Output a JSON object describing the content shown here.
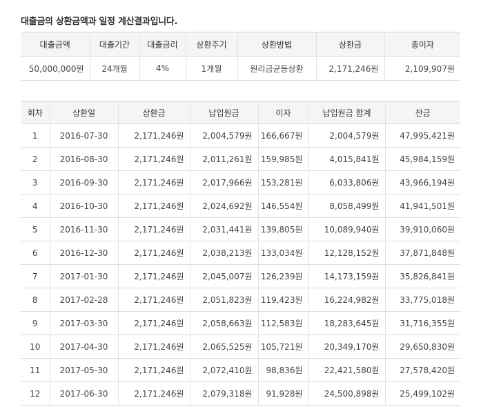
{
  "title": "대출금의 상환금액과 일정 계산결과입니다.",
  "summary": {
    "headers": [
      "대출금액",
      "대출기간",
      "대출금리",
      "상환주기",
      "상환방법",
      "상환금",
      "총이자"
    ],
    "values": [
      "50,000,000원",
      "24개월",
      "4%",
      "1개월",
      "원리금균등상환",
      "2,171,246원",
      "2,109,907원"
    ]
  },
  "schedule": {
    "headers": [
      "회차",
      "상환일",
      "상환금",
      "납입원금",
      "이자",
      "납입원금 합계",
      "잔금"
    ],
    "rows": [
      [
        "1",
        "2016-07-30",
        "2,171,246원",
        "2,004,579원",
        "166,667원",
        "2,004,579원",
        "47,995,421원"
      ],
      [
        "2",
        "2016-08-30",
        "2,171,246원",
        "2,011,261원",
        "159,985원",
        "4,015,841원",
        "45,984,159원"
      ],
      [
        "3",
        "2016-09-30",
        "2,171,246원",
        "2,017,966원",
        "153,281원",
        "6,033,806원",
        "43,966,194원"
      ],
      [
        "4",
        "2016-10-30",
        "2,171,246원",
        "2,024,692원",
        "146,554원",
        "8,058,499원",
        "41,941,501원"
      ],
      [
        "5",
        "2016-11-30",
        "2,171,246원",
        "2,031,441원",
        "139,805원",
        "10,089,940원",
        "39,910,060원"
      ],
      [
        "6",
        "2016-12-30",
        "2,171,246원",
        "2,038,213원",
        "133,034원",
        "12,128,152원",
        "37,871,848원"
      ],
      [
        "7",
        "2017-01-30",
        "2,171,246원",
        "2,045,007원",
        "126,239원",
        "14,173,159원",
        "35,826,841원"
      ],
      [
        "8",
        "2017-02-28",
        "2,171,246원",
        "2,051,823원",
        "119,423원",
        "16,224,982원",
        "33,775,018원"
      ],
      [
        "9",
        "2017-03-30",
        "2,171,246원",
        "2,058,663원",
        "112,583원",
        "18,283,645원",
        "31,716,355원"
      ],
      [
        "10",
        "2017-04-30",
        "2,171,246원",
        "2,065,525원",
        "105,721원",
        "20,349,170원",
        "29,650,830원"
      ],
      [
        "11",
        "2017-05-30",
        "2,171,246원",
        "2,072,410원",
        "98,836원",
        "22,421,580원",
        "27,578,420원"
      ],
      [
        "12",
        "2017-06-30",
        "2,171,246원",
        "2,079,318원",
        "91,928원",
        "24,500,898원",
        "25,499,102원"
      ]
    ]
  }
}
